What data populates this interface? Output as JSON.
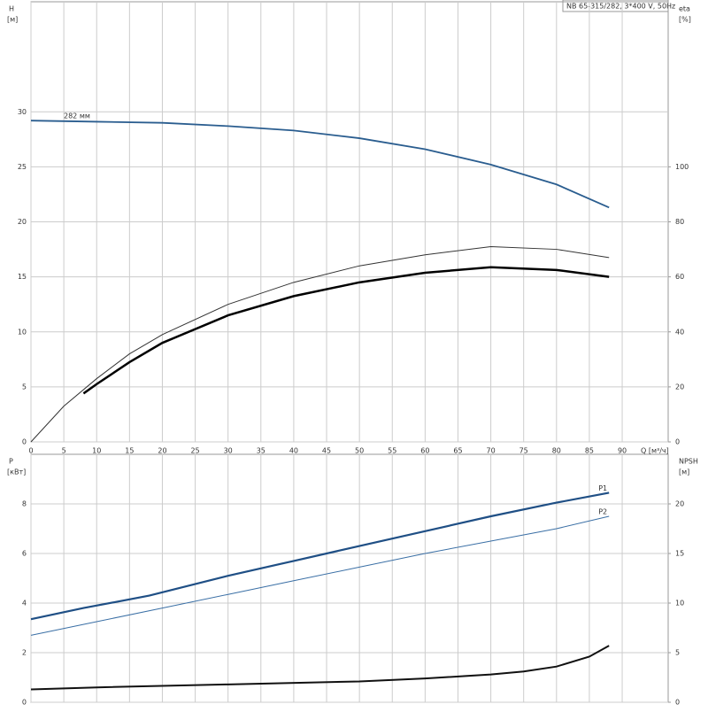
{
  "chart_data": [
    {
      "type": "line",
      "title": "NB 65-315/282, 3*400 V, 50Hz",
      "ylabel": "H",
      "yunit": "[м]",
      "y2label": "eta",
      "y2unit": "[%]",
      "xlabel": "Q [м³/ч]",
      "xlim": [
        0,
        97
      ],
      "xticks": [
        0,
        5,
        10,
        15,
        20,
        25,
        30,
        35,
        40,
        45,
        50,
        55,
        60,
        65,
        70,
        75,
        80,
        85,
        90
      ],
      "ylim": [
        0,
        40
      ],
      "yticks": [
        0,
        5,
        10,
        15,
        20,
        25,
        30
      ],
      "y2lim": [
        0,
        160
      ],
      "y2ticks": [
        0,
        20,
        40,
        60,
        80,
        100
      ],
      "grid": true,
      "series": [
        {
          "name": "282 мм",
          "color": "#2a5d8f",
          "x": [
            0,
            10,
            20,
            30,
            40,
            50,
            60,
            70,
            80,
            88
          ],
          "values": [
            29.2,
            29.1,
            29.0,
            28.7,
            28.3,
            27.6,
            26.6,
            25.2,
            23.4,
            21.3
          ]
        },
        {
          "color": "#333333",
          "axis": "y2",
          "x": [
            0,
            5,
            10,
            15,
            20,
            30,
            40,
            50,
            60,
            70,
            80,
            88
          ],
          "values": [
            0,
            13,
            23,
            32,
            39,
            50,
            58,
            64,
            68,
            71,
            70,
            67
          ]
        },
        {
          "color": "#000000",
          "axis": "y2",
          "x": [
            8,
            10,
            15,
            20,
            30,
            40,
            50,
            60,
            70,
            80,
            88
          ],
          "values": [
            17.6,
            21,
            29,
            36,
            46,
            53,
            58,
            61.5,
            63.5,
            62.5,
            60
          ]
        }
      ]
    },
    {
      "type": "line",
      "ylabel": "P",
      "yunit": "[кВт]",
      "y2label": "NPSH",
      "y2unit": "[м]",
      "xlim": [
        0,
        97
      ],
      "xticks": [
        0,
        5,
        10,
        15,
        20,
        25,
        30,
        35,
        40,
        45,
        50,
        55,
        60,
        65,
        70,
        75,
        80,
        85,
        90
      ],
      "xtick_labels": false,
      "ylim": [
        0,
        10
      ],
      "yticks": [
        0,
        2,
        4,
        6,
        8
      ],
      "y2lim": [
        0,
        25
      ],
      "y2ticks": [
        0,
        5,
        10,
        15,
        20
      ],
      "grid": true,
      "series": [
        {
          "name": "P1",
          "color": "#1f4f85",
          "x": [
            0,
            8,
            18,
            30,
            40,
            50,
            60,
            70,
            80,
            88
          ],
          "values": [
            3.35,
            3.8,
            4.3,
            5.1,
            5.7,
            6.3,
            6.9,
            7.5,
            8.05,
            8.45
          ]
        },
        {
          "name": "P2",
          "color": "#3a6fa5",
          "x": [
            0,
            10,
            20,
            30,
            40,
            50,
            60,
            70,
            80,
            88
          ],
          "values": [
            2.7,
            3.25,
            3.8,
            4.35,
            4.9,
            5.45,
            6.0,
            6.5,
            7.0,
            7.5
          ]
        },
        {
          "color": "#111111",
          "axis": "y2",
          "x": [
            0,
            10,
            30,
            50,
            60,
            70,
            75,
            80,
            85,
            88
          ],
          "values": [
            1.3,
            1.5,
            1.8,
            2.1,
            2.4,
            2.8,
            3.1,
            3.6,
            4.6,
            5.7
          ]
        }
      ]
    }
  ]
}
